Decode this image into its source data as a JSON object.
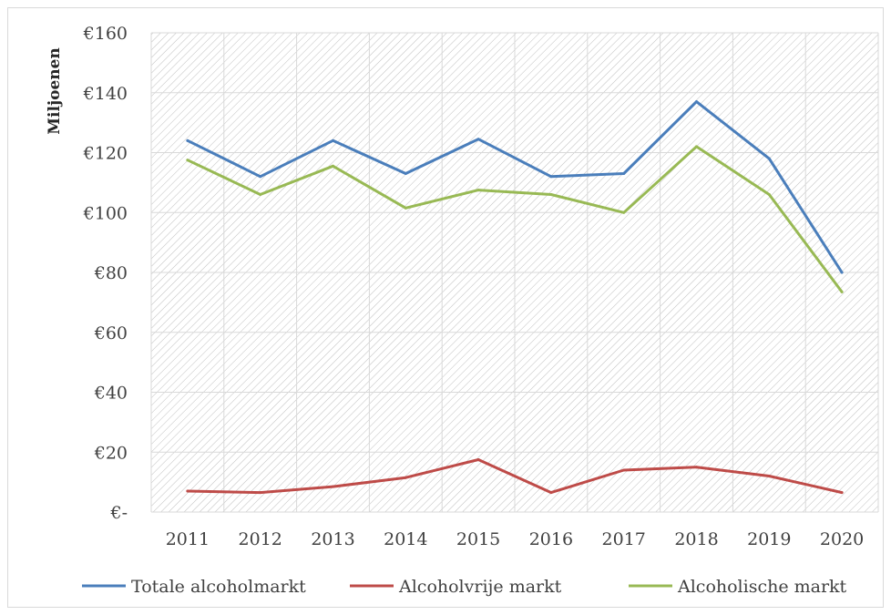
{
  "colors": {
    "totale": "#4a7ebb",
    "alcoholvrij": "#be4b48",
    "alcoholisch": "#98b954",
    "grid": "#d9d9d9",
    "hatch": "#bfbfbf"
  },
  "chart_data": {
    "type": "line",
    "title": "",
    "xlabel": "",
    "ylabel": "Miljoenen",
    "categories": [
      "2011",
      "2012",
      "2013",
      "2014",
      "2015",
      "2016",
      "2017",
      "2018",
      "2019",
      "2020"
    ],
    "ylim": [
      0,
      160
    ],
    "ytick_values": [
      0,
      20,
      40,
      60,
      80,
      100,
      120,
      140,
      160
    ],
    "ytick_labels": [
      "€-",
      "€20",
      "€40",
      "€60",
      "€80",
      "€100",
      "€120",
      "€140",
      "€160"
    ],
    "grid": true,
    "legend_position": "bottom",
    "series": [
      {
        "name": "Totale alcoholmarkt",
        "color_key": "totale",
        "values": [
          124,
          112,
          124,
          113,
          124.5,
          112,
          113,
          137,
          118,
          80
        ]
      },
      {
        "name": "Alcoholvrije markt",
        "color_key": "alcoholvrij",
        "values": [
          7,
          6.5,
          8.5,
          11.5,
          17.5,
          6.5,
          14,
          15,
          12,
          6.5
        ]
      },
      {
        "name": "Alcoholische markt",
        "color_key": "alcoholisch",
        "values": [
          117.5,
          106,
          115.5,
          101.5,
          107.5,
          106,
          100,
          122,
          106,
          73.5
        ]
      }
    ]
  }
}
